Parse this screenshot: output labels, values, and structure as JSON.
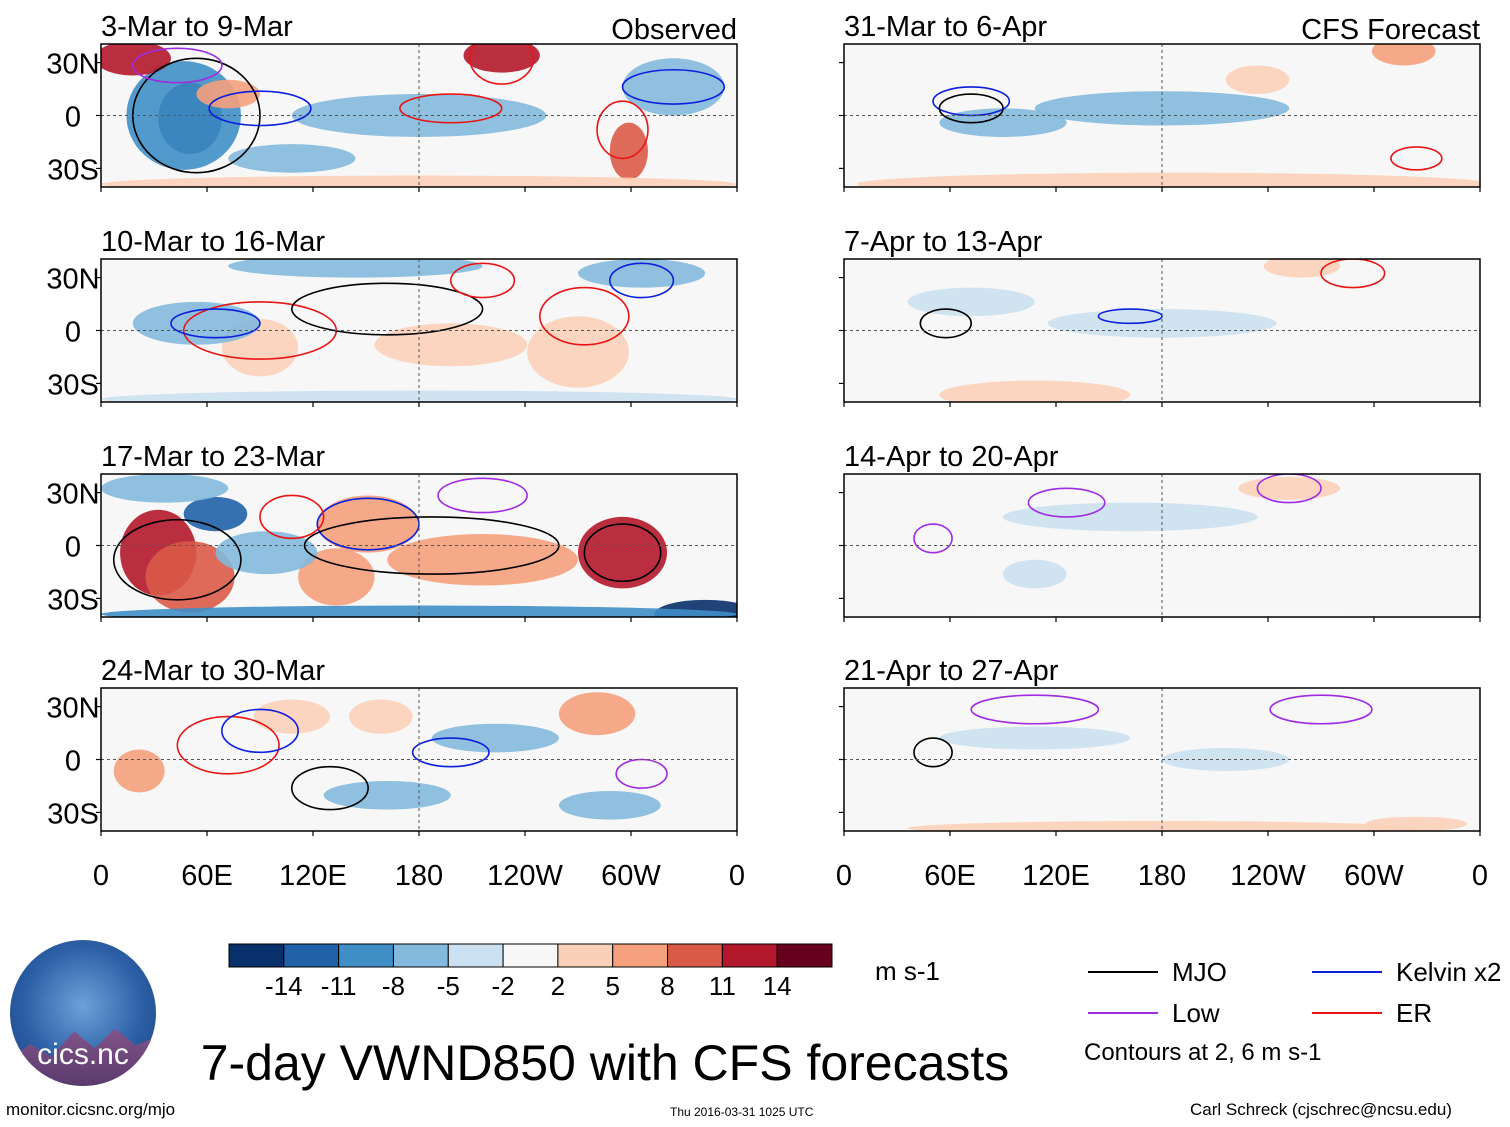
{
  "chart_data": {
    "type": "heatmap",
    "title": "7-day VWND850 with CFS forecasts",
    "variable": "VWND850",
    "units": "m s-1",
    "columns": [
      {
        "header": "Observed",
        "panels": [
          {
            "label": "3-Mar to 9-Mar"
          },
          {
            "label": "10-Mar to 16-Mar"
          },
          {
            "label": "17-Mar to 23-Mar"
          },
          {
            "label": "24-Mar to 30-Mar"
          }
        ]
      },
      {
        "header": "CFS Forecast",
        "panels": [
          {
            "label": "31-Mar to 6-Apr"
          },
          {
            "label": "7-Apr to 13-Apr"
          },
          {
            "label": "14-Apr to 20-Apr"
          },
          {
            "label": "21-Apr to 27-Apr"
          }
        ]
      }
    ],
    "x_ticks": [
      "0",
      "60E",
      "120E",
      "180",
      "120W",
      "60W",
      "0"
    ],
    "y_ticks": [
      "30N",
      "0",
      "30S"
    ],
    "colorbar": {
      "levels": [
        -14,
        -11,
        -8,
        -5,
        -2,
        2,
        5,
        8,
        11,
        14
      ],
      "colors": [
        "#08306b",
        "#1f62a8",
        "#3f8ec6",
        "#83b9dc",
        "#cbe0f0",
        "#f7f7f7",
        "#fbd0b8",
        "#f4a07c",
        "#da5a48",
        "#b2172b",
        "#67001f"
      ]
    },
    "legend": [
      {
        "label": "MJO",
        "color": "#000000"
      },
      {
        "label": "Kelvin x2",
        "color": "#0b1fdc"
      },
      {
        "label": "Low",
        "color": "#a02be0"
      },
      {
        "label": "ER",
        "color": "#e81515"
      }
    ],
    "contour_note": "Contours at 2, 6 m s-1"
  },
  "footer": {
    "url": "monitor.cicsnc.org/mjo",
    "timestamp": "Thu 2016-03-31 1025 UTC",
    "author": "Carl Schreck (cjschrec@ncsu.edu)",
    "logo_text": "cics.nc"
  }
}
